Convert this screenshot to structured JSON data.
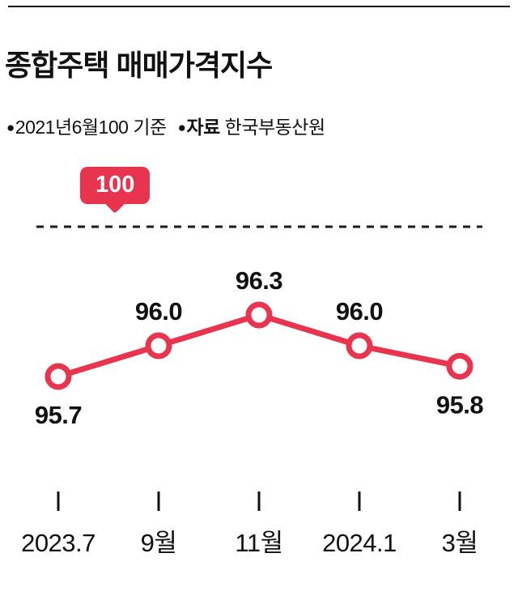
{
  "header": {
    "title": "종합주택 매매가격지수",
    "legend": {
      "bullet": "●",
      "basis": "2021년6월100 기준",
      "source_label": "자료",
      "source_value": "한국부동산원"
    }
  },
  "chart_data": {
    "type": "line",
    "title": "종합주택 매매가격지수",
    "subtitle": "2021년6월100 기준, 자료: 한국부동산원",
    "categories": [
      "2023.7",
      "9월",
      "11월",
      "2024.1",
      "3월"
    ],
    "values": [
      95.7,
      96.0,
      96.3,
      96.0,
      95.8
    ],
    "value_labels": [
      "95.7",
      "96.0",
      "96.3",
      "96.0",
      "95.8"
    ],
    "label_positions": [
      "below",
      "above",
      "above",
      "above",
      "below"
    ],
    "reference_line": {
      "value": 100,
      "label": "100",
      "style": "dashed"
    },
    "ylim": [
      95.5,
      100
    ],
    "grid": false,
    "legend_position": "none",
    "colors": {
      "accent_red": "#e8344f",
      "marker_fill": "#ffffff",
      "text": "#111111",
      "reference": "#1a1a1a",
      "background": "#ffffff"
    }
  }
}
